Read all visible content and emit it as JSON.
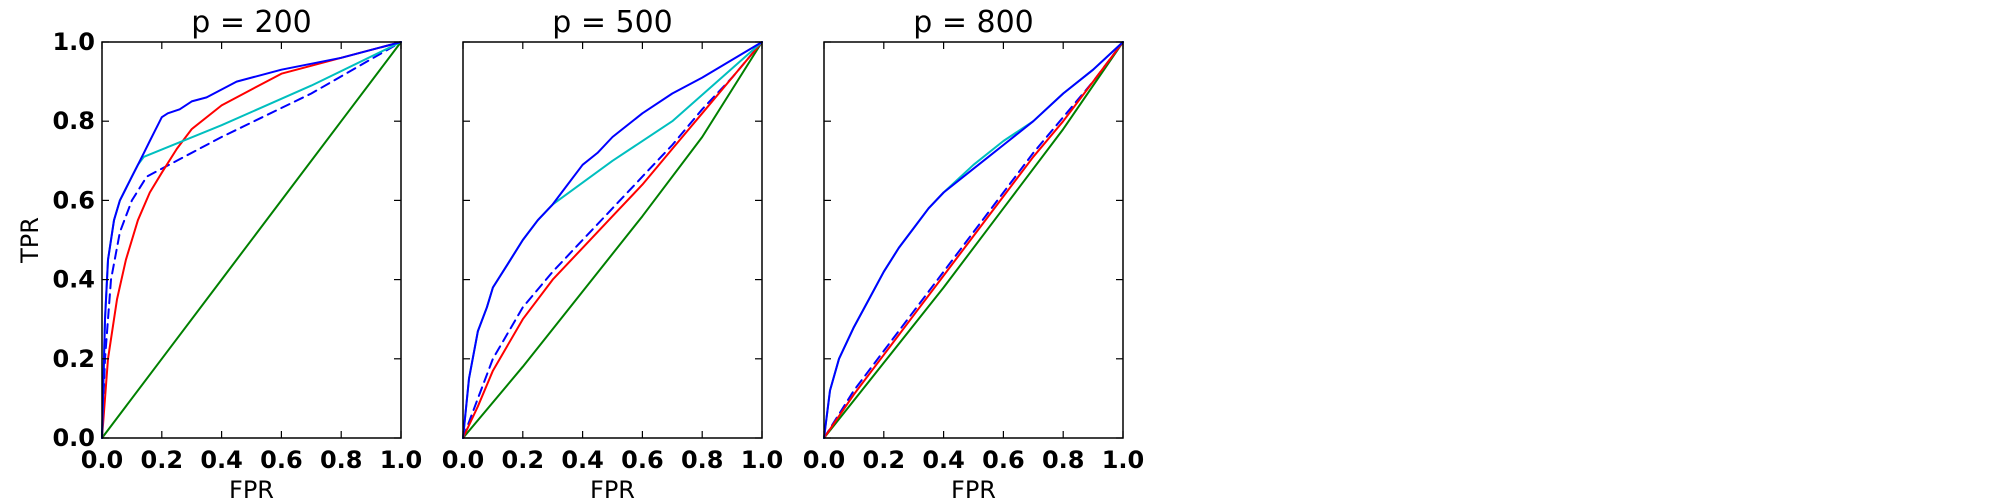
{
  "chart_data": [
    {
      "type": "line",
      "title": "p = 200",
      "xlabel": "FPR",
      "ylabel": "TPR",
      "xlim": [
        0,
        1
      ],
      "ylim": [
        0,
        1
      ],
      "xticks": [
        "0.0",
        "0.2",
        "0.4",
        "0.6",
        "0.8",
        "1.0"
      ],
      "yticks": [
        "0.0",
        "0.2",
        "0.4",
        "0.6",
        "0.8",
        "1.0"
      ],
      "grid": false,
      "series": [
        {
          "color": "#008000",
          "dash": "solid",
          "x": [
            0,
            0.2,
            0.4,
            0.6,
            0.8,
            1.0
          ],
          "y": [
            0,
            0.2,
            0.4,
            0.6,
            0.8,
            1.0
          ]
        },
        {
          "color": "#0000ff",
          "dash": "dashed",
          "x": [
            0,
            0.01,
            0.03,
            0.06,
            0.1,
            0.15,
            0.4,
            0.7,
            1.0
          ],
          "y": [
            0,
            0.2,
            0.4,
            0.52,
            0.6,
            0.66,
            0.76,
            0.87,
            1.0
          ]
        },
        {
          "color": "#ff0000",
          "dash": "solid",
          "x": [
            0,
            0.02,
            0.05,
            0.08,
            0.12,
            0.16,
            0.2,
            0.25,
            0.3,
            0.4,
            0.5,
            0.6,
            0.8,
            1.0
          ],
          "y": [
            0,
            0.2,
            0.35,
            0.45,
            0.55,
            0.62,
            0.67,
            0.73,
            0.78,
            0.84,
            0.88,
            0.92,
            0.96,
            1.0
          ]
        },
        {
          "color": "#00bfbf",
          "dash": "solid",
          "x": [
            0,
            0.01,
            0.02,
            0.04,
            0.06,
            0.08,
            0.1,
            0.12,
            0.14,
            0.4,
            0.7,
            1.0
          ],
          "y": [
            0,
            0.3,
            0.45,
            0.55,
            0.6,
            0.63,
            0.66,
            0.69,
            0.71,
            0.79,
            0.89,
            1.0
          ]
        },
        {
          "color": "#0000ff",
          "dash": "solid",
          "x": [
            0,
            0.01,
            0.02,
            0.04,
            0.06,
            0.08,
            0.1,
            0.12,
            0.14,
            0.16,
            0.18,
            0.2,
            0.22,
            0.26,
            0.3,
            0.35,
            0.4,
            0.45,
            0.6,
            0.8,
            1.0
          ],
          "y": [
            0,
            0.3,
            0.45,
            0.55,
            0.6,
            0.63,
            0.66,
            0.69,
            0.72,
            0.75,
            0.78,
            0.81,
            0.82,
            0.83,
            0.85,
            0.86,
            0.88,
            0.9,
            0.93,
            0.96,
            1.0
          ]
        }
      ]
    },
    {
      "type": "line",
      "title": "p = 500",
      "xlabel": "FPR",
      "ylabel": "",
      "xlim": [
        0,
        1
      ],
      "ylim": [
        0,
        1
      ],
      "xticks": [
        "0.0",
        "0.2",
        "0.4",
        "0.6",
        "0.8",
        "1.0"
      ],
      "yticks": [],
      "grid": false,
      "series": [
        {
          "color": "#008000",
          "dash": "solid",
          "x": [
            0,
            0.2,
            0.4,
            0.6,
            0.8,
            1.0
          ],
          "y": [
            0,
            0.18,
            0.37,
            0.56,
            0.76,
            1.0
          ]
        },
        {
          "color": "#0000ff",
          "dash": "dashed",
          "x": [
            0,
            0.05,
            0.1,
            0.2,
            0.3,
            0.4,
            0.5,
            0.6,
            0.7,
            0.8,
            0.9,
            1.0
          ],
          "y": [
            0,
            0.1,
            0.2,
            0.33,
            0.42,
            0.5,
            0.58,
            0.66,
            0.74,
            0.83,
            0.91,
            1.0
          ]
        },
        {
          "color": "#ff0000",
          "dash": "solid",
          "x": [
            0,
            0.05,
            0.1,
            0.2,
            0.3,
            0.4,
            0.5,
            0.6,
            0.7,
            0.8,
            0.9,
            1.0
          ],
          "y": [
            0,
            0.08,
            0.17,
            0.3,
            0.4,
            0.48,
            0.56,
            0.64,
            0.73,
            0.82,
            0.91,
            1.0
          ]
        },
        {
          "color": "#00bfbf",
          "dash": "solid",
          "x": [
            0,
            0.02,
            0.05,
            0.08,
            0.1,
            0.15,
            0.2,
            0.25,
            0.3,
            0.5,
            0.7,
            1.0
          ],
          "y": [
            0,
            0.15,
            0.27,
            0.33,
            0.38,
            0.44,
            0.5,
            0.55,
            0.59,
            0.7,
            0.8,
            1.0
          ]
        },
        {
          "color": "#0000ff",
          "dash": "solid",
          "x": [
            0,
            0.02,
            0.05,
            0.08,
            0.1,
            0.15,
            0.2,
            0.25,
            0.3,
            0.35,
            0.4,
            0.45,
            0.5,
            0.6,
            0.7,
            0.8,
            1.0
          ],
          "y": [
            0,
            0.15,
            0.27,
            0.33,
            0.38,
            0.44,
            0.5,
            0.55,
            0.59,
            0.64,
            0.69,
            0.72,
            0.76,
            0.82,
            0.87,
            0.91,
            1.0
          ]
        }
      ]
    },
    {
      "type": "line",
      "title": "p = 800",
      "xlabel": "FPR",
      "ylabel": "",
      "xlim": [
        0,
        1
      ],
      "ylim": [
        0,
        1
      ],
      "xticks": [
        "0.0",
        "0.2",
        "0.4",
        "0.6",
        "0.8",
        "1.0"
      ],
      "yticks": [],
      "grid": false,
      "series": [
        {
          "color": "#008000",
          "dash": "solid",
          "x": [
            0,
            0.2,
            0.4,
            0.6,
            0.8,
            1.0
          ],
          "y": [
            0,
            0.19,
            0.38,
            0.58,
            0.78,
            1.0
          ]
        },
        {
          "color": "#0000ff",
          "dash": "dashed",
          "x": [
            0,
            0.1,
            0.2,
            0.3,
            0.4,
            0.5,
            0.6,
            0.7,
            0.8,
            0.9,
            1.0
          ],
          "y": [
            0,
            0.12,
            0.22,
            0.32,
            0.42,
            0.52,
            0.62,
            0.72,
            0.81,
            0.9,
            1.0
          ]
        },
        {
          "color": "#ff0000",
          "dash": "solid",
          "x": [
            0,
            0.1,
            0.2,
            0.3,
            0.4,
            0.5,
            0.6,
            0.7,
            0.8,
            0.9,
            1.0
          ],
          "y": [
            0,
            0.11,
            0.21,
            0.31,
            0.41,
            0.51,
            0.61,
            0.71,
            0.8,
            0.9,
            1.0
          ]
        },
        {
          "color": "#00bfbf",
          "dash": "solid",
          "x": [
            0,
            0.02,
            0.05,
            0.1,
            0.15,
            0.2,
            0.25,
            0.3,
            0.35,
            0.4,
            0.5,
            0.6,
            0.7,
            0.8,
            0.9,
            1.0
          ],
          "y": [
            0,
            0.12,
            0.2,
            0.28,
            0.35,
            0.42,
            0.48,
            0.53,
            0.58,
            0.62,
            0.69,
            0.75,
            0.8,
            0.87,
            0.93,
            1.0
          ]
        },
        {
          "color": "#0000ff",
          "dash": "solid",
          "x": [
            0,
            0.02,
            0.05,
            0.1,
            0.15,
            0.2,
            0.25,
            0.3,
            0.35,
            0.4,
            0.5,
            0.55,
            0.6,
            0.65,
            0.7,
            0.8,
            0.9,
            1.0
          ],
          "y": [
            0,
            0.12,
            0.2,
            0.28,
            0.35,
            0.42,
            0.48,
            0.53,
            0.58,
            0.62,
            0.68,
            0.71,
            0.74,
            0.77,
            0.8,
            0.87,
            0.93,
            1.0
          ]
        }
      ]
    }
  ]
}
